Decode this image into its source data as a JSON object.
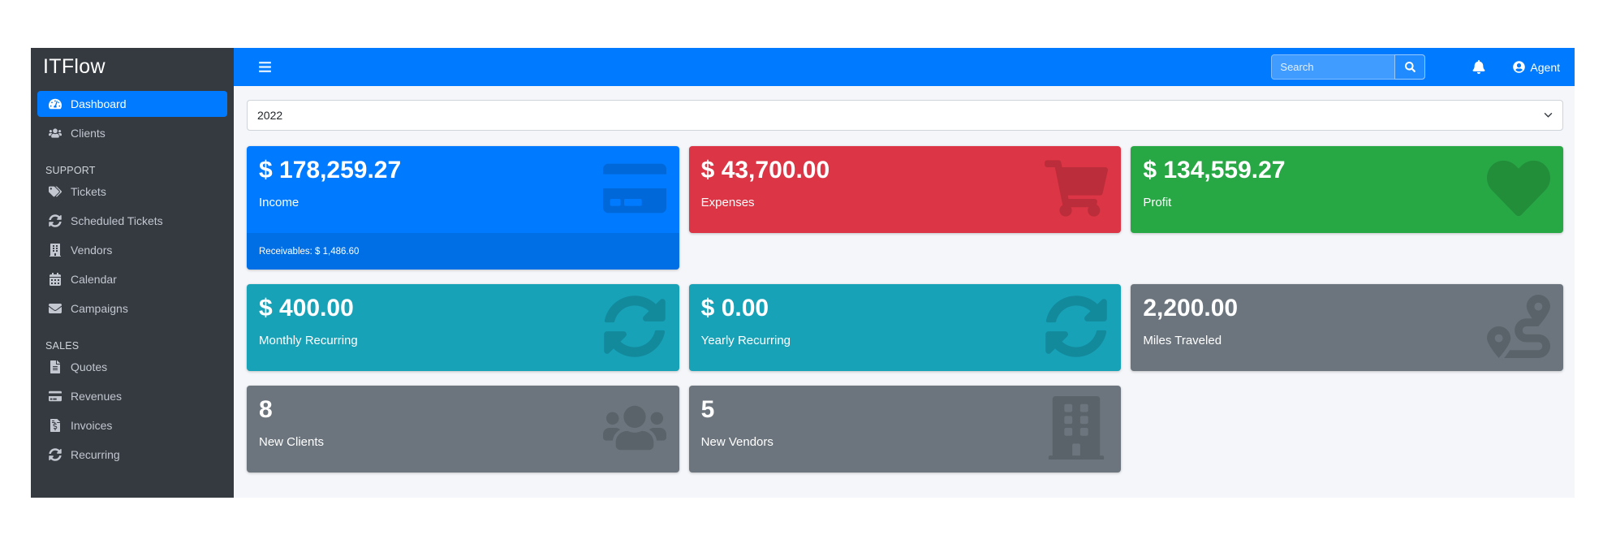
{
  "colors": {
    "primary": "#007bff",
    "danger": "#dc3545",
    "success": "#28a745",
    "info": "#17a2b8",
    "secondary": "#6c757d",
    "sidebar_bg": "#343a40",
    "content_bg": "#f4f6f9"
  },
  "brand": {
    "title": "ITFlow"
  },
  "topbar": {
    "search_placeholder": "Search",
    "user_label": "Agent"
  },
  "filters": {
    "year": "2022"
  },
  "sidebar": {
    "sections": [
      {
        "header": "",
        "items": [
          {
            "label": "Dashboard",
            "icon": "tachometer",
            "active": true
          },
          {
            "label": "Clients",
            "icon": "users",
            "active": false
          }
        ]
      },
      {
        "header": "SUPPORT",
        "items": [
          {
            "label": "Tickets",
            "icon": "tags",
            "active": false
          },
          {
            "label": "Scheduled Tickets",
            "icon": "sync",
            "active": false
          },
          {
            "label": "Vendors",
            "icon": "building",
            "active": false
          },
          {
            "label": "Calendar",
            "icon": "calendar",
            "active": false
          },
          {
            "label": "Campaigns",
            "icon": "envelope",
            "active": false
          }
        ]
      },
      {
        "header": "SALES",
        "items": [
          {
            "label": "Quotes",
            "icon": "file-alt",
            "active": false
          },
          {
            "label": "Revenues",
            "icon": "credit-card",
            "active": false
          },
          {
            "label": "Invoices",
            "icon": "file-invoice-dollar",
            "active": false
          },
          {
            "label": "Recurring",
            "icon": "sync",
            "active": false
          }
        ]
      }
    ]
  },
  "cards": {
    "rows": [
      [
        {
          "value": "$ 178,259.27",
          "label": "Income",
          "icon": "credit-card",
          "color": "primary",
          "footer": "Receivables: $ 1,486.60"
        },
        {
          "value": "$ 43,700.00",
          "label": "Expenses",
          "icon": "shopping-cart",
          "color": "danger"
        },
        {
          "value": "$ 134,559.27",
          "label": "Profit",
          "icon": "heart",
          "color": "success"
        }
      ],
      [
        {
          "value": "$ 400.00",
          "label": "Monthly Recurring",
          "icon": "sync",
          "color": "info"
        },
        {
          "value": "$ 0.00",
          "label": "Yearly Recurring",
          "icon": "sync",
          "color": "info"
        },
        {
          "value": "2,200.00",
          "label": "Miles Traveled",
          "icon": "route",
          "color": "secondary"
        }
      ],
      [
        {
          "value": "8",
          "label": "New Clients",
          "icon": "users",
          "color": "secondary"
        },
        {
          "value": "5",
          "label": "New Vendors",
          "icon": "building",
          "color": "secondary"
        }
      ]
    ]
  }
}
